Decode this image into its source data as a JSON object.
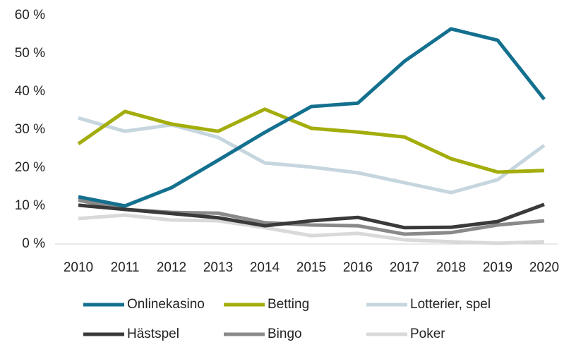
{
  "chart_data": {
    "type": "line",
    "categories": [
      "2010",
      "2011",
      "2012",
      "2013",
      "2014",
      "2015",
      "2016",
      "2017",
      "2018",
      "2019",
      "2020"
    ],
    "series": [
      {
        "name": "Onlinekasino",
        "color": "#14708f",
        "values": [
          12.4,
          10,
          14.8,
          22,
          29.3,
          36.1,
          37,
          48,
          56.5,
          53.5,
          38
        ]
      },
      {
        "name": "Betting",
        "color": "#a3ad0b",
        "values": [
          26.3,
          34.8,
          31.5,
          29.6,
          35.4,
          30.4,
          29.4,
          28.1,
          22.4,
          18.9,
          19.3
        ]
      },
      {
        "name": "Lotterier, spel",
        "color": "#c6d6de",
        "values": [
          33.1,
          29.6,
          31.3,
          28,
          21.3,
          20.2,
          18.7,
          16.1,
          13.5,
          16.9,
          25.9
        ]
      },
      {
        "name": "Hästspel",
        "color": "#3a3a3a",
        "values": [
          10.2,
          9.1,
          8,
          6.9,
          4.8,
          6.1,
          7,
          4.3,
          4.4,
          5.9,
          10.4
        ]
      },
      {
        "name": "Bingo",
        "color": "#8a8a8a",
        "values": [
          11.5,
          9.1,
          8.3,
          8.1,
          5.6,
          5,
          4.8,
          2.6,
          3,
          5,
          6.1
        ]
      },
      {
        "name": "Poker",
        "color": "#d9d9d9",
        "values": [
          6.7,
          7.6,
          6.3,
          6.1,
          4.3,
          2.2,
          2.8,
          1.1,
          0.6,
          0.2,
          0.6
        ]
      }
    ],
    "ylim": [
      0,
      60
    ],
    "yticks": [
      {
        "value": 0,
        "label": "0 %"
      },
      {
        "value": 10,
        "label": "10 %"
      },
      {
        "value": 20,
        "label": "20 %"
      },
      {
        "value": 30,
        "label": "30 %"
      },
      {
        "value": 40,
        "label": "40 %"
      },
      {
        "value": 50,
        "label": "50 %"
      },
      {
        "value": 60,
        "label": "60 %"
      }
    ],
    "grid": false
  }
}
